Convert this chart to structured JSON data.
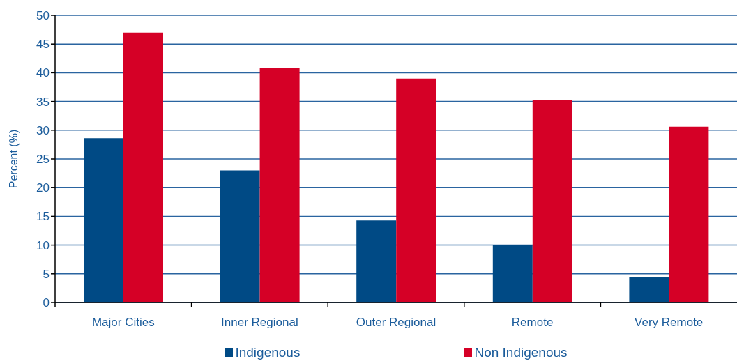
{
  "chart_data": {
    "type": "bar",
    "ylabel": "Percent (%)",
    "categories": [
      "Major Cities",
      "Inner Regional",
      "Outer Regional",
      "Remote",
      "Very Remote"
    ],
    "series": [
      {
        "name": "Indigenous",
        "color": "#004a85",
        "values": [
          28.6,
          23.0,
          14.3,
          10.0,
          4.4
        ]
      },
      {
        "name": "Non Indigenous",
        "color": "#d50026",
        "values": [
          47.0,
          40.9,
          39.0,
          35.2,
          30.6
        ]
      }
    ],
    "ylim": [
      0,
      50
    ],
    "yticks": [
      0,
      5,
      10,
      15,
      20,
      25,
      30,
      35,
      40,
      45,
      50
    ],
    "grid": "y",
    "legend": "bottom"
  }
}
